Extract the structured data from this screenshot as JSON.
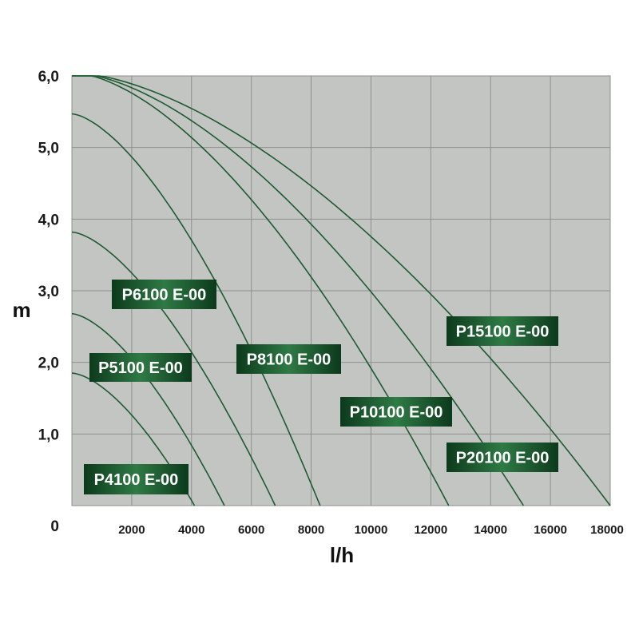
{
  "chart_data": {
    "type": "line",
    "xlabel": "l/h",
    "ylabel": "m",
    "xlim": [
      0,
      18000
    ],
    "ylim": [
      0,
      6
    ],
    "x_ticks": [
      "2000",
      "4000",
      "6000",
      "8000",
      "10000",
      "12000",
      "14000",
      "16000",
      "18000"
    ],
    "y_ticks": [
      "6,0",
      "5,0",
      "4,0",
      "3,0",
      "2,0",
      "1,0"
    ],
    "origin_label": "0",
    "grid": true,
    "colors": {
      "plot_background": "#c3c5c3",
      "grid": "#8e908e",
      "curve": "#1e5a32",
      "label_box_dark": "#0c3a1c",
      "label_box_light": "#2f7a45"
    },
    "series": [
      {
        "name": "P4100 E-00",
        "shutoff_head": 1.85,
        "max_flow": 4100
      },
      {
        "name": "P5100 E-00",
        "shutoff_head": 2.68,
        "max_flow": 5100
      },
      {
        "name": "P6100 E-00",
        "shutoff_head": 3.82,
        "max_flow": 6800
      },
      {
        "name": "P8100 E-00",
        "shutoff_head": 5.47,
        "max_flow": 8300
      },
      {
        "name": "P10100 E-00",
        "shutoff_head": 6.05,
        "max_flow": 12600
      },
      {
        "name": "P15100 E-00",
        "shutoff_head": 6.05,
        "max_flow": 15100
      },
      {
        "name": "P20100 E-00",
        "shutoff_head": 6.05,
        "max_flow": 18000
      }
    ]
  }
}
